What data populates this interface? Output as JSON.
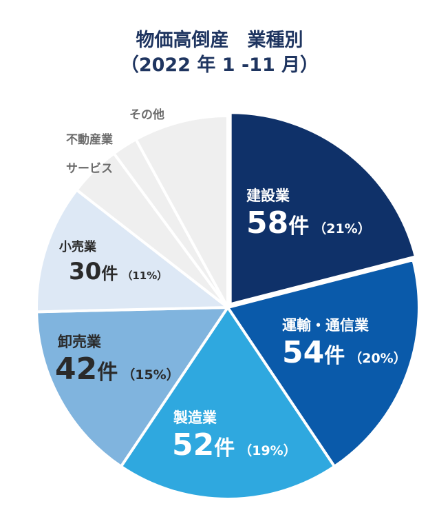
{
  "chart_data": {
    "type": "pie",
    "title": "物価高倒産　業種別",
    "subtitle": "（2022 年 1 -11 月）",
    "unit": "件",
    "slices": [
      {
        "name": "建設業",
        "value": 58,
        "value_label": "58",
        "percent_label": "（21%）",
        "color": "#0f3169"
      },
      {
        "name": "運輸・通信業",
        "value": 54,
        "value_label": "54",
        "percent_label": "（20%）",
        "color": "#0a5aaa"
      },
      {
        "name": "製造業",
        "value": 52,
        "value_label": "52",
        "percent_label": "（19%）",
        "color": "#2fa8df"
      },
      {
        "name": "卸売業",
        "value": 42,
        "value_label": "42",
        "percent_label": "（15%）",
        "color": "#80b4de"
      },
      {
        "name": "小売業",
        "value": 30,
        "value_label": "30",
        "percent_label": "（11%）",
        "color": "#dde8f5"
      },
      {
        "name": "サービス",
        "value": 12,
        "color": "#efefef"
      },
      {
        "name": "不動産業",
        "value": 6,
        "color": "#efefef"
      },
      {
        "name": "その他",
        "value": 22,
        "color": "#efefef"
      }
    ]
  }
}
